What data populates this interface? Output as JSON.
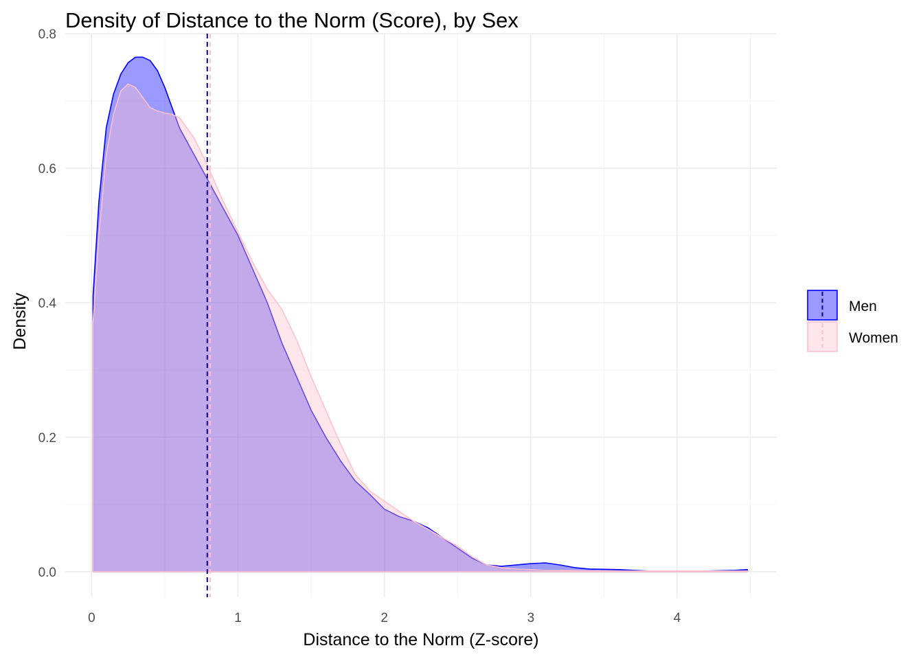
{
  "chart_data": {
    "type": "area",
    "title": "Density of Distance to the Norm (Score), by Sex",
    "xlabel": "Distance to the Norm (Z-score)",
    "ylabel": "Density",
    "xlim": [
      -0.18,
      4.68
    ],
    "ylim": [
      -0.038,
      0.8
    ],
    "x_ticks": [
      0,
      1,
      2,
      3,
      4
    ],
    "y_ticks": [
      0.0,
      0.2,
      0.4,
      0.6,
      0.8
    ],
    "x_tick_labels": [
      "0",
      "1",
      "2",
      "3",
      "4"
    ],
    "y_tick_labels": [
      "0.0",
      "0.2",
      "0.4",
      "0.6",
      "0.8"
    ],
    "grid": true,
    "legend_position": "right",
    "series": [
      {
        "name": "Men",
        "fill_color": "#0000ff",
        "fill_opacity": 0.4,
        "line_color": "#0000ff",
        "mean_line": 0.79,
        "x": [
          0.01,
          0.05,
          0.1,
          0.15,
          0.2,
          0.25,
          0.3,
          0.35,
          0.4,
          0.45,
          0.5,
          0.55,
          0.6,
          0.7,
          0.8,
          0.9,
          1.0,
          1.1,
          1.2,
          1.3,
          1.4,
          1.5,
          1.6,
          1.7,
          1.8,
          1.9,
          2.0,
          2.1,
          2.2,
          2.3,
          2.4,
          2.5,
          2.6,
          2.7,
          2.8,
          2.9,
          3.0,
          3.1,
          3.2,
          3.3,
          3.4,
          3.6,
          3.8,
          4.0,
          4.2,
          4.4,
          4.48
        ],
        "y": [
          0.41,
          0.55,
          0.66,
          0.71,
          0.74,
          0.757,
          0.765,
          0.765,
          0.76,
          0.745,
          0.72,
          0.69,
          0.66,
          0.62,
          0.58,
          0.54,
          0.5,
          0.45,
          0.4,
          0.34,
          0.29,
          0.24,
          0.2,
          0.165,
          0.135,
          0.115,
          0.093,
          0.082,
          0.075,
          0.065,
          0.05,
          0.035,
          0.02,
          0.01,
          0.008,
          0.01,
          0.012,
          0.013,
          0.01,
          0.006,
          0.004,
          0.003,
          0.001,
          0.001,
          0.001,
          0.002,
          0.003
        ]
      },
      {
        "name": "Women",
        "fill_color": "#ffc0cb",
        "fill_opacity": 0.4,
        "line_color": "#ffc0cb",
        "mean_line": 0.81,
        "x": [
          0.01,
          0.05,
          0.1,
          0.15,
          0.2,
          0.25,
          0.3,
          0.35,
          0.4,
          0.45,
          0.5,
          0.55,
          0.6,
          0.7,
          0.8,
          0.9,
          1.0,
          1.1,
          1.2,
          1.3,
          1.4,
          1.5,
          1.6,
          1.7,
          1.8,
          1.9,
          2.0,
          2.1,
          2.2,
          2.3,
          2.4,
          2.5,
          2.6,
          2.7,
          2.8,
          2.9,
          3.0,
          3.1,
          3.2,
          3.4,
          3.6,
          3.8,
          4.0,
          4.2,
          4.4,
          4.48
        ],
        "y": [
          0.37,
          0.5,
          0.62,
          0.68,
          0.715,
          0.725,
          0.72,
          0.705,
          0.69,
          0.685,
          0.682,
          0.68,
          0.675,
          0.645,
          0.6,
          0.55,
          0.505,
          0.46,
          0.42,
          0.39,
          0.345,
          0.29,
          0.24,
          0.19,
          0.145,
          0.12,
          0.105,
          0.09,
          0.075,
          0.063,
          0.05,
          0.038,
          0.022,
          0.01,
          0.006,
          0.004,
          0.003,
          0.002,
          0.002,
          0.001,
          0.001,
          0.001,
          0.001,
          0.001,
          0.001,
          0.001
        ]
      }
    ]
  }
}
